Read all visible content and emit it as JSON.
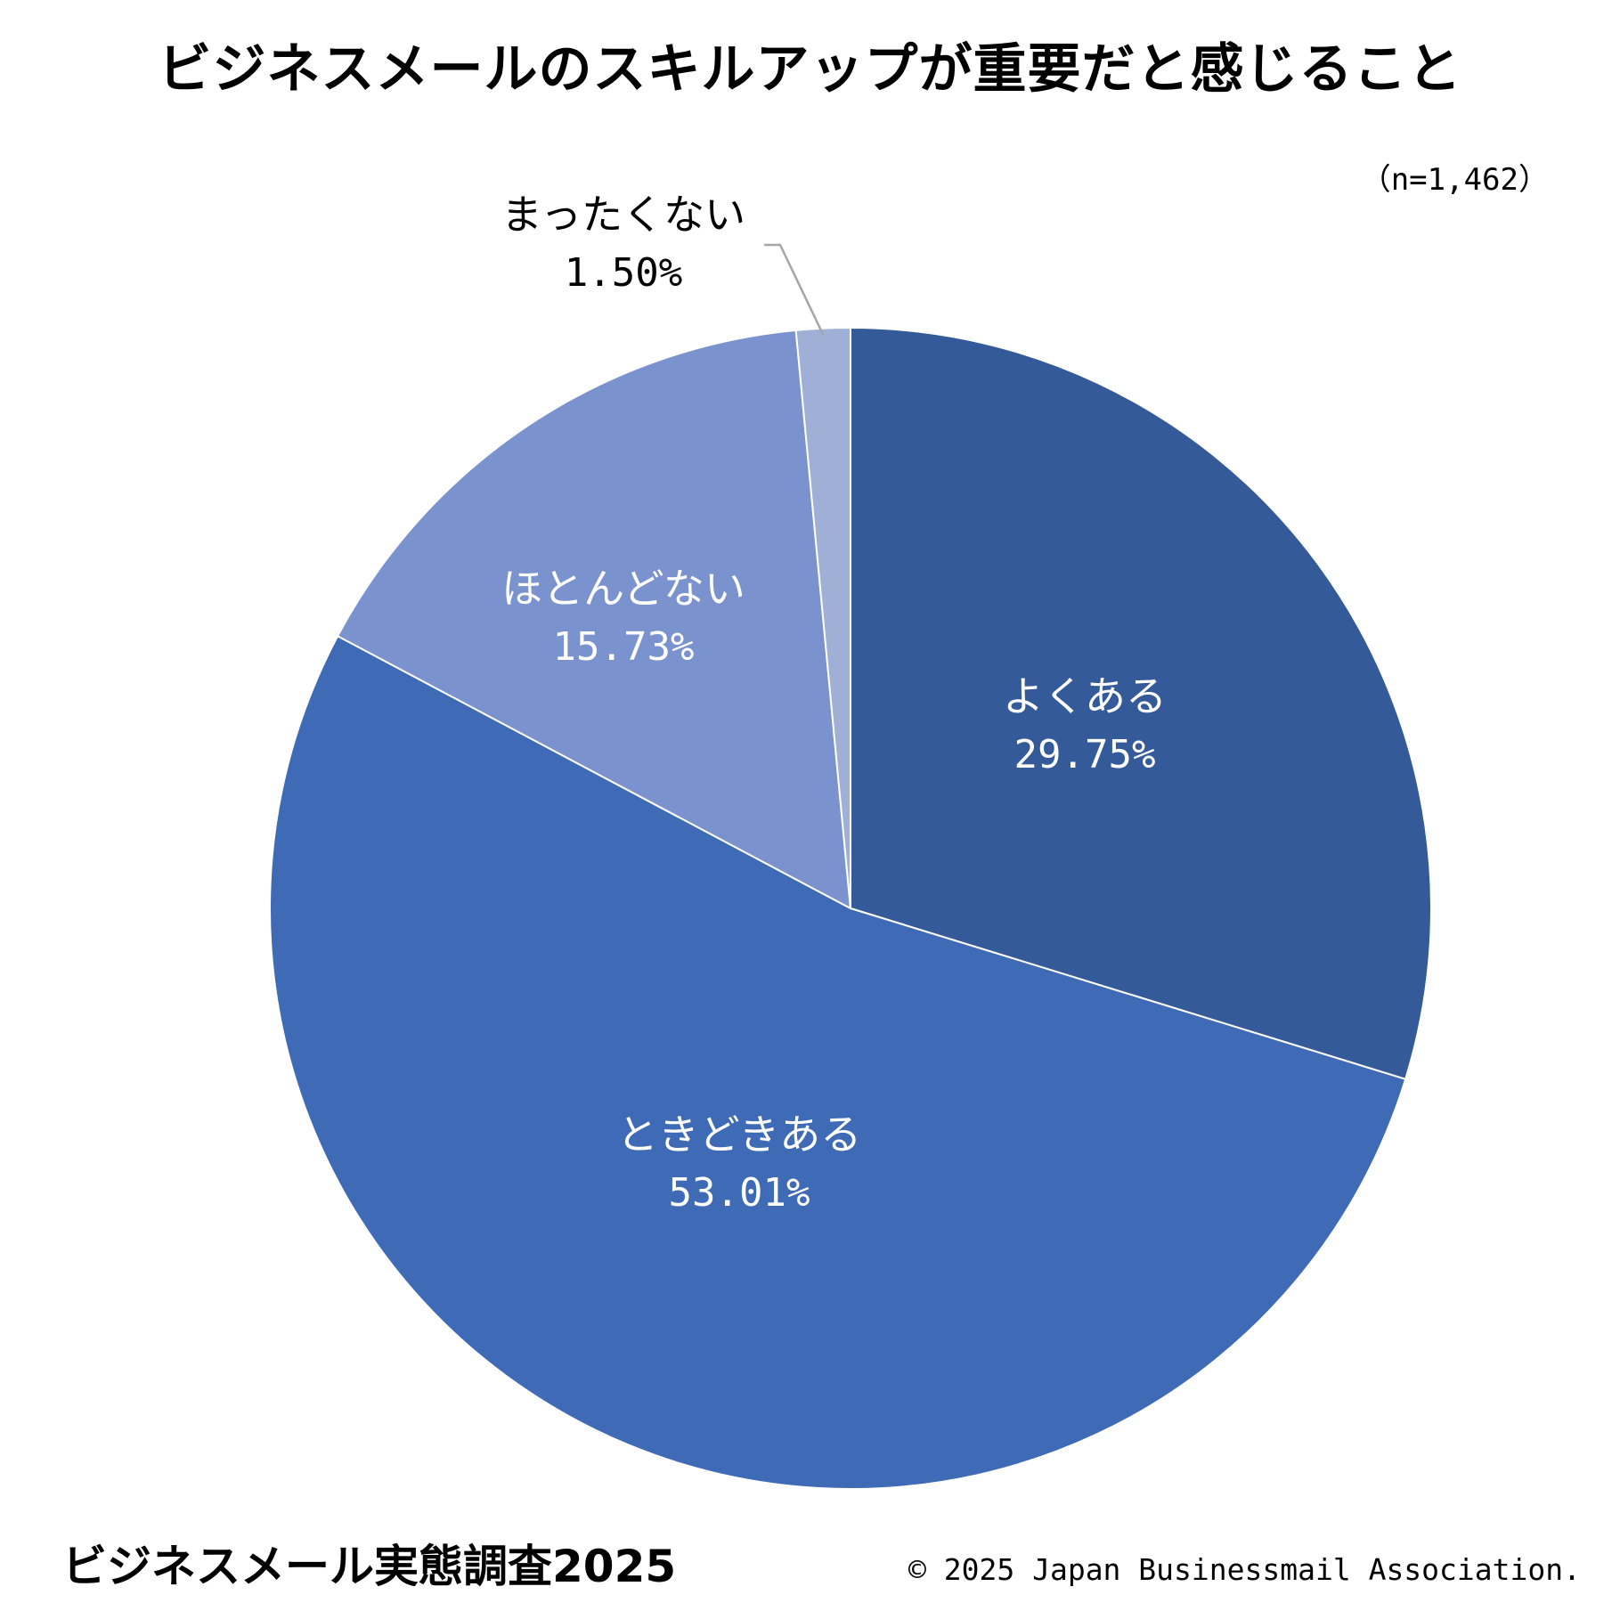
{
  "footer": {
    "survey_name": "ビジネスメール実態調査2025",
    "copyright": "© 2025 Japan Businessmail Association."
  },
  "chart_data": {
    "type": "pie",
    "title": "ビジネスメールのスキルアップが重要だと感じること",
    "sample_size": "（n=1,462）",
    "start_angle": "12 o'clock",
    "direction": "clockwise",
    "slices": [
      {
        "label": "よくある",
        "value": 29.75,
        "value_label": "29.75%",
        "color": "#345a99",
        "label_color": "#ffffff"
      },
      {
        "label": "ときどきある",
        "value": 53.01,
        "value_label": "53.01%",
        "color": "#3f6ab6",
        "label_color": "#ffffff"
      },
      {
        "label": "ほとんどない",
        "value": 15.73,
        "value_label": "15.73%",
        "color": "#7a92cd",
        "label_color": "#ffffff"
      },
      {
        "label": "まったくない",
        "value": 1.5,
        "value_label": "1.50%",
        "color": "#a0afd5",
        "label_color": "#000000",
        "leader_line_color": "#a6a6a6"
      }
    ]
  }
}
